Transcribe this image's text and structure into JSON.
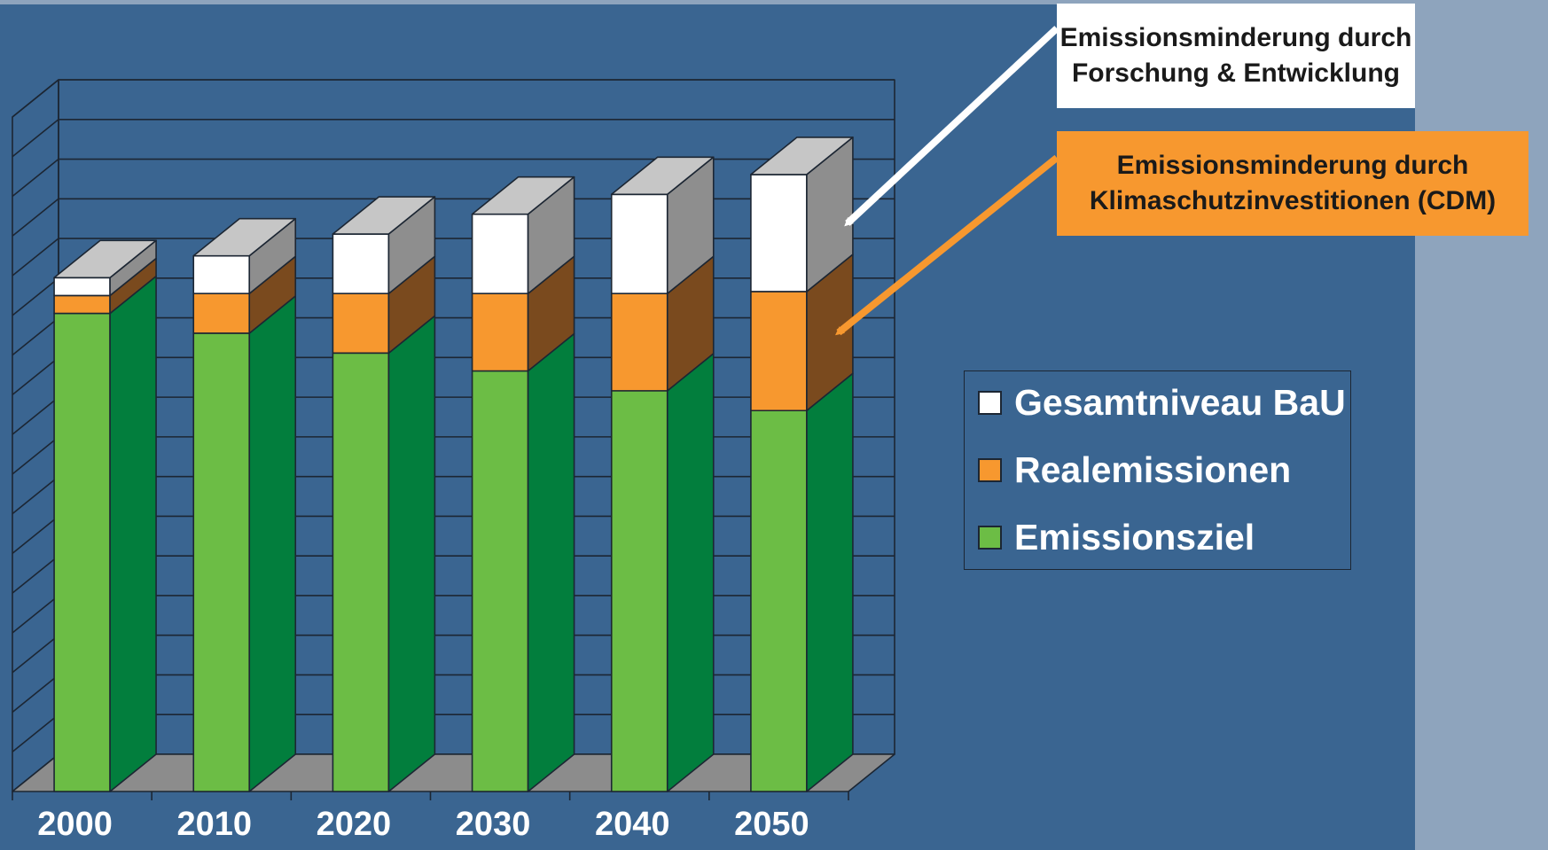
{
  "colors": {
    "background": "#3a6591",
    "grid": "#1c2633",
    "floor": "#8c8c8c",
    "bau": "#ffffff",
    "bau_side": "#8e8e8e",
    "bau_top": "#c6c6c6",
    "real": "#f7982f",
    "real_side": "#7a4a1e",
    "target": "#6cbd45",
    "target_side": "#027e3d",
    "rd_arrow": "#ffffff",
    "cdm_arrow": "#f7982f"
  },
  "callouts": {
    "rd": {
      "line1": "Emissionsminderung durch",
      "line2": "Forschung & Entwicklung"
    },
    "cdm": {
      "line1": "Emissionsminderung durch",
      "line2": "Klimaschutzinvestitionen (CDM)"
    }
  },
  "legend": {
    "items": [
      {
        "label": "Gesamtniveau BaU",
        "color": "#ffffff"
      },
      {
        "label": "Realemissionen",
        "color": "#f7982f"
      },
      {
        "label": "Emissionsziel",
        "color": "#6cbd45"
      }
    ]
  },
  "chart_data": {
    "type": "bar",
    "stacked": true,
    "three_d": true,
    "categories": [
      "2000",
      "2010",
      "2020",
      "2030",
      "2040",
      "2050"
    ],
    "series": [
      {
        "name": "Emissionsziel",
        "values": [
          12.05,
          11.55,
          11.05,
          10.6,
          10.1,
          9.6
        ]
      },
      {
        "name": "Realemissionen",
        "values": [
          0.45,
          1.0,
          1.5,
          1.95,
          2.45,
          3.0
        ]
      },
      {
        "name": "Gesamtniveau BaU",
        "values": [
          0.45,
          0.95,
          1.5,
          2.0,
          2.5,
          2.95
        ]
      }
    ],
    "ylim": [
      0,
      17
    ],
    "grid": true,
    "legend_position": "right"
  }
}
